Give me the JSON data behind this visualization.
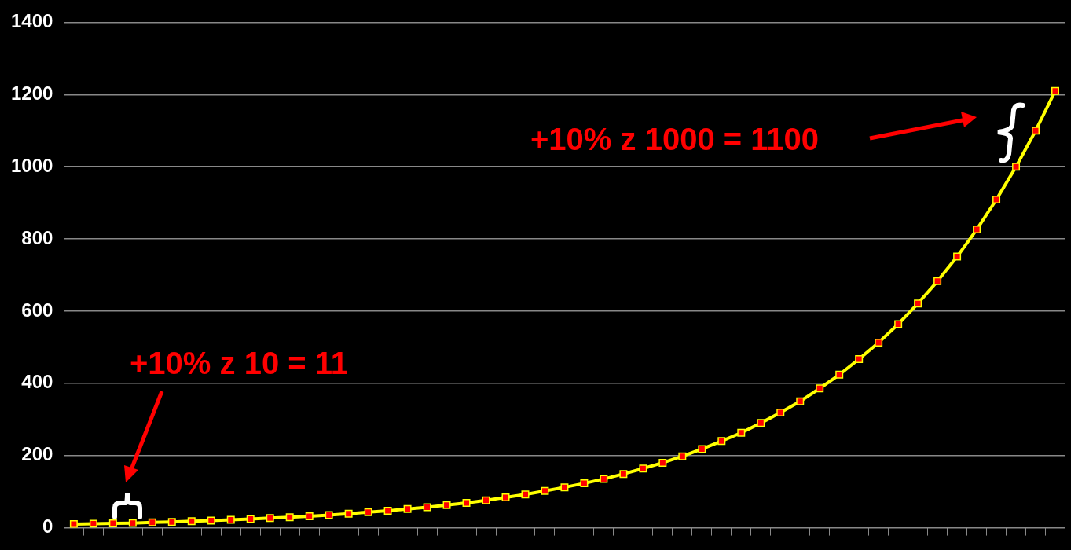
{
  "chart_data": {
    "type": "line",
    "categories": [
      null,
      null,
      null,
      null,
      null,
      null,
      null,
      null,
      null,
      null,
      null,
      null,
      null,
      null,
      null,
      null,
      null,
      null,
      null,
      null,
      null,
      null,
      null,
      null,
      null,
      null,
      null,
      null,
      null,
      null,
      null,
      null,
      null,
      null,
      null,
      null,
      null,
      null,
      null,
      null,
      null,
      null,
      null,
      null,
      null,
      null,
      null,
      null,
      null,
      null,
      null
    ],
    "series": [
      {
        "color": "#ffff00",
        "values": [
          10,
          11,
          12,
          13,
          15,
          16,
          18,
          20,
          22,
          24,
          27,
          29,
          32,
          35,
          39,
          43,
          47,
          52,
          57,
          63,
          69,
          76,
          84,
          92,
          102,
          112,
          123,
          135,
          149,
          164,
          180,
          198,
          218,
          240,
          263,
          290,
          319,
          350,
          386,
          424,
          467,
          513,
          564,
          621,
          683,
          751,
          826,
          909,
          1000,
          1100,
          1210
        ]
      }
    ],
    "ylim": [
      0,
      1400
    ],
    "yticks": [
      0,
      200,
      400,
      600,
      800,
      1000,
      1200,
      1400
    ],
    "grid": "y",
    "tick_labels": "y",
    "marker": "square",
    "line_style": "solid",
    "legend": false,
    "annotations": [
      "+10% z 1000 = 1100",
      "+10% z 10 = 11"
    ]
  }
}
